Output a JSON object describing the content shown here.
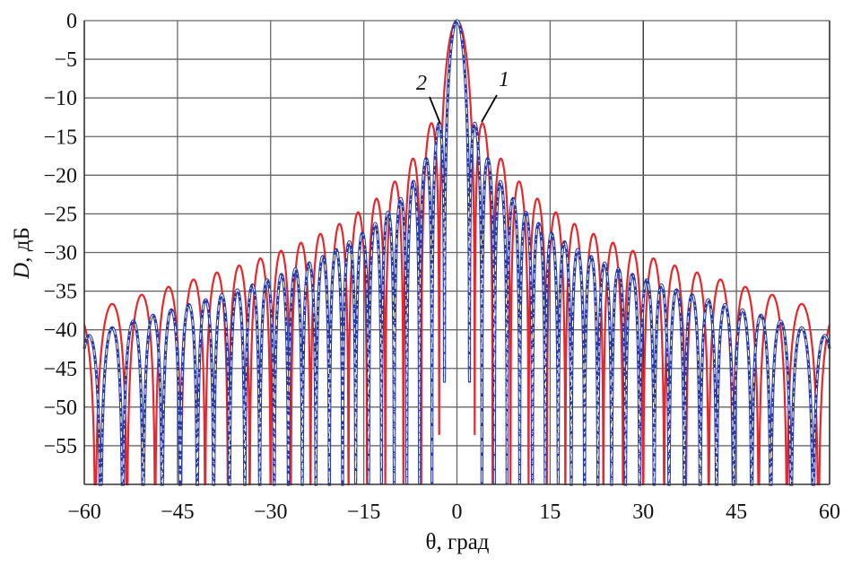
{
  "chart_data": {
    "type": "line",
    "title": "",
    "xlabel": "θ, град",
    "ylabel_italic": "D",
    "ylabel_rest": ", дБ",
    "xlim": [
      -60,
      60
    ],
    "ylim": [
      -60,
      0
    ],
    "grid": true,
    "x_ticks": [
      -60,
      -45,
      -30,
      -15,
      0,
      15,
      30,
      45,
      60
    ],
    "x_tick_labels": [
      "−60",
      "−45",
      "−30",
      "−15",
      "0",
      "15",
      "30",
      "45",
      "60"
    ],
    "y_ticks": [
      0,
      -5,
      -10,
      -15,
      -20,
      -25,
      -30,
      -35,
      -40,
      -45,
      -50,
      -55
    ],
    "y_tick_labels": [
      "0",
      "−5",
      "−10",
      "−15",
      "−20",
      "−25",
      "−30",
      "−35",
      "−40",
      "−45",
      "−50",
      "−55"
    ],
    "series": [
      {
        "name": "1",
        "style": "solid",
        "color": "#e8262b",
        "model": {
          "kind": "uniform-array-pattern",
          "elements": 40,
          "spacing_wavelengths": 0.5,
          "element_cos_power": 1
        },
        "first_sidelobe_db": -13.3,
        "first_sidelobe_deg": 4,
        "level_at_60_deg_db": -41
      },
      {
        "name": "2",
        "style": "dash-dot",
        "color": "#2b3ba6",
        "model": {
          "kind": "uniform-array-pattern",
          "elements": 57,
          "spacing_wavelengths": 0.5,
          "element_cos_power": 1
        },
        "first_sidelobe_db": -13.5,
        "first_sidelobe_deg": 3,
        "level_at_60_deg_db": -44
      }
    ],
    "annotations": [
      {
        "text": "1",
        "points_to_series": "1"
      },
      {
        "text": "2",
        "points_to_series": "2"
      }
    ]
  }
}
